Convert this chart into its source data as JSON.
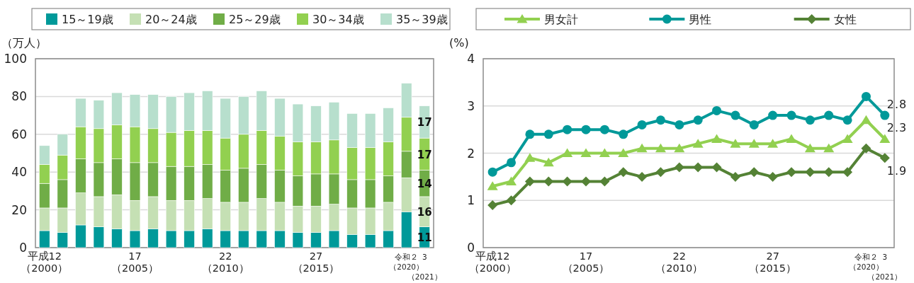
{
  "chart_data": [
    {
      "type": "bar",
      "stacked": true,
      "ylabel": "（万人）",
      "ylim": [
        0,
        100
      ],
      "yticks": [
        0,
        20,
        40,
        60,
        80,
        100
      ],
      "grid": "y",
      "legend": "top",
      "categories": [
        "平成12（2000）",
        null,
        null,
        null,
        null,
        "17（2005）",
        null,
        null,
        null,
        null,
        "22（2010）",
        null,
        null,
        null,
        null,
        "27（2015）",
        null,
        null,
        null,
        null,
        "令和２（2020）",
        "3（2021）"
      ],
      "series": [
        {
          "name": "15～19歳",
          "color": "#009999",
          "values": [
            9,
            8,
            12,
            11,
            10,
            9,
            10,
            9,
            9,
            10,
            9,
            9,
            9,
            9,
            8,
            8,
            9,
            7,
            7,
            9,
            19,
            11
          ],
          "value_labels": [
            null,
            null,
            null,
            null,
            null,
            null,
            null,
            null,
            null,
            null,
            null,
            null,
            null,
            null,
            null,
            null,
            null,
            null,
            null,
            null,
            null,
            "11"
          ]
        },
        {
          "name": "20～24歳",
          "color": "#c5e0b4",
          "values": [
            12,
            13,
            17,
            16,
            18,
            16,
            17,
            16,
            16,
            16,
            15,
            15,
            17,
            15,
            14,
            14,
            14,
            14,
            14,
            15,
            18,
            16
          ],
          "value_labels": [
            null,
            null,
            null,
            null,
            null,
            null,
            null,
            null,
            null,
            null,
            null,
            null,
            null,
            null,
            null,
            null,
            null,
            null,
            null,
            null,
            null,
            "16"
          ]
        },
        {
          "name": "25～29歳",
          "color": "#70ad47",
          "values": [
            13,
            15,
            18,
            18,
            19,
            20,
            18,
            18,
            18,
            18,
            17,
            18,
            18,
            17,
            16,
            17,
            16,
            15,
            15,
            14,
            14,
            14
          ],
          "value_labels": [
            null,
            null,
            null,
            null,
            null,
            null,
            null,
            null,
            null,
            null,
            null,
            null,
            null,
            null,
            null,
            null,
            null,
            null,
            null,
            null,
            null,
            "14"
          ]
        },
        {
          "name": "30～34歳",
          "color": "#92d050",
          "values": [
            10,
            13,
            17,
            18,
            18,
            19,
            18,
            18,
            19,
            18,
            17,
            18,
            18,
            18,
            18,
            17,
            18,
            17,
            17,
            18,
            18,
            17
          ],
          "value_labels": [
            null,
            null,
            null,
            null,
            null,
            null,
            null,
            null,
            null,
            null,
            null,
            null,
            null,
            null,
            null,
            null,
            null,
            null,
            null,
            null,
            null,
            "17"
          ]
        },
        {
          "name": "35～39歳",
          "color": "#b7dfcd",
          "values": [
            10,
            11,
            15,
            15,
            17,
            17,
            18,
            19,
            20,
            21,
            21,
            20,
            21,
            20,
            20,
            19,
            20,
            18,
            18,
            18,
            18,
            17
          ],
          "value_labels": [
            null,
            null,
            null,
            null,
            null,
            null,
            null,
            null,
            null,
            null,
            null,
            null,
            null,
            null,
            null,
            null,
            null,
            null,
            null,
            null,
            null,
            "17"
          ]
        }
      ]
    },
    {
      "type": "line",
      "ylabel": "(%)",
      "ylim": [
        0,
        4
      ],
      "yticks": [
        0,
        1,
        2,
        3,
        4
      ],
      "grid": "y",
      "legend": "top",
      "categories": [
        "平成12（2000）",
        null,
        null,
        null,
        null,
        "17（2005）",
        null,
        null,
        null,
        null,
        "22（2010）",
        null,
        null,
        null,
        null,
        "27（2015）",
        null,
        null,
        null,
        null,
        "令和２（2020）",
        "3（2021）"
      ],
      "series": [
        {
          "name": "男女計",
          "color": "#92d050",
          "marker": "triangle",
          "values": [
            1.3,
            1.4,
            1.9,
            1.8,
            2.0,
            2.0,
            2.0,
            2.0,
            2.1,
            2.1,
            2.1,
            2.2,
            2.3,
            2.2,
            2.2,
            2.2,
            2.3,
            2.1,
            2.1,
            2.3,
            2.7,
            2.3
          ],
          "value_labels": [
            null,
            null,
            null,
            null,
            null,
            null,
            null,
            null,
            null,
            null,
            null,
            null,
            null,
            null,
            null,
            null,
            null,
            null,
            null,
            null,
            null,
            "2.3"
          ]
        },
        {
          "name": "男性",
          "color": "#009999",
          "marker": "circle",
          "values": [
            1.6,
            1.8,
            2.4,
            2.4,
            2.5,
            2.5,
            2.5,
            2.4,
            2.6,
            2.7,
            2.6,
            2.7,
            2.9,
            2.8,
            2.6,
            2.8,
            2.8,
            2.7,
            2.8,
            2.7,
            3.2,
            2.8
          ],
          "value_labels": [
            null,
            null,
            null,
            null,
            null,
            null,
            null,
            null,
            null,
            null,
            null,
            null,
            null,
            null,
            null,
            null,
            null,
            null,
            null,
            null,
            null,
            "2.8"
          ]
        },
        {
          "name": "女性",
          "color": "#548235",
          "marker": "diamond",
          "values": [
            0.9,
            1.0,
            1.4,
            1.4,
            1.4,
            1.4,
            1.4,
            1.6,
            1.5,
            1.6,
            1.7,
            1.7,
            1.7,
            1.5,
            1.6,
            1.5,
            1.6,
            1.6,
            1.6,
            1.6,
            2.1,
            1.9
          ],
          "value_labels": [
            null,
            null,
            null,
            null,
            null,
            null,
            null,
            null,
            null,
            null,
            null,
            null,
            null,
            null,
            null,
            null,
            null,
            null,
            null,
            null,
            null,
            "1.9"
          ]
        }
      ]
    }
  ]
}
